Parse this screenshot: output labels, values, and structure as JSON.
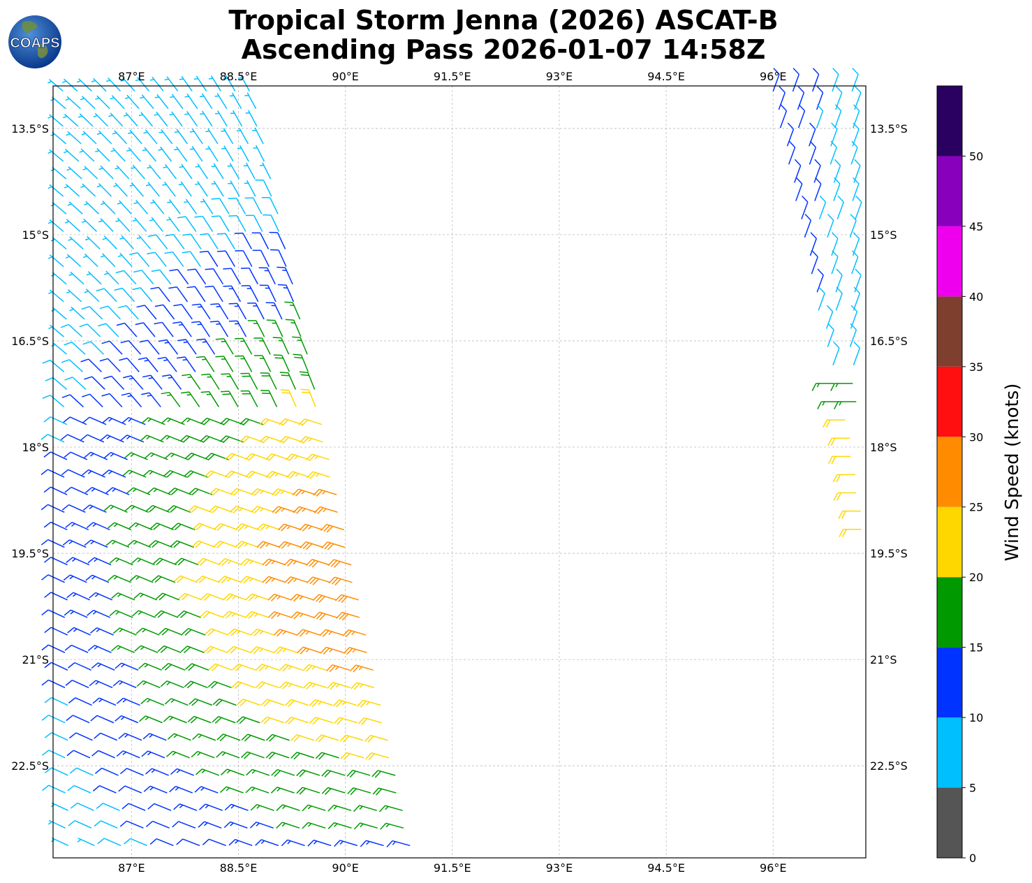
{
  "title_line1": "Tropical Storm Jenna (2026) ASCAT-B",
  "title_line2": "Ascending Pass 2026-01-07 14:58Z",
  "logo_text": "COAPS",
  "map": {
    "lon_range": [
      85.9,
      97.3
    ],
    "lat_range": [
      -23.8,
      -12.9
    ],
    "lon_ticks": [
      "87°E",
      "88.5°E",
      "90°E",
      "91.5°E",
      "93°E",
      "94.5°E",
      "96°E"
    ],
    "lon_tick_values": [
      87,
      88.5,
      90,
      91.5,
      93,
      94.5,
      96
    ],
    "lat_ticks": [
      "13.5°S",
      "15°S",
      "16.5°S",
      "18°S",
      "19.5°S",
      "21°S",
      "22.5°S"
    ],
    "lat_tick_values": [
      -13.5,
      -15,
      -16.5,
      -18,
      -19.5,
      -21,
      -22.5
    ],
    "grid": true,
    "grid_style": "dashed light gray"
  },
  "colorbar": {
    "title": "Wind Speed (knots)",
    "labels": [
      "0",
      "5",
      "10",
      "15",
      "20",
      "25",
      "30",
      "35",
      "40",
      "45",
      "50"
    ],
    "bins": [
      {
        "min": 0,
        "max": 5,
        "color": "#555555"
      },
      {
        "min": 5,
        "max": 10,
        "color": "#00bfff"
      },
      {
        "min": 10,
        "max": 15,
        "color": "#0033ff"
      },
      {
        "min": 15,
        "max": 20,
        "color": "#009900"
      },
      {
        "min": 20,
        "max": 25,
        "color": "#ffd700"
      },
      {
        "min": 25,
        "max": 30,
        "color": "#ff8c00"
      },
      {
        "min": 30,
        "max": 35,
        "color": "#ff0f0f"
      },
      {
        "min": 35,
        "max": 40,
        "color": "#7f3f2f"
      },
      {
        "min": 40,
        "max": 45,
        "color": "#ee00ee"
      },
      {
        "min": 45,
        "max": 50,
        "color": "#8800bb"
      },
      {
        "min": 50,
        "max": 55,
        "color": "#2a0060"
      }
    ]
  },
  "swaths": [
    {
      "name": "west-swath",
      "lat_top": -12.9,
      "lat_bottom": -23.8,
      "west_lon_top": 86.0,
      "west_lon_bottom": 86.0,
      "east_lon_top": 88.8,
      "east_lon_bottom": 91.2,
      "speed_regions": [
        {
          "note_speed": 12,
          "lat_from": -12.9,
          "lat_to": -13.4
        },
        {
          "note_speed": 7,
          "lat_from": -12.9,
          "lat_to": -13.4
        }
      ]
    },
    {
      "name": "east-swath",
      "lat_top": -12.9,
      "lat_bottom": -19.6,
      "west_lon_top": 95.9,
      "west_lon_bottom": 97.3,
      "east_lon_top": 97.3,
      "east_lon_bottom": 97.3
    }
  ]
}
